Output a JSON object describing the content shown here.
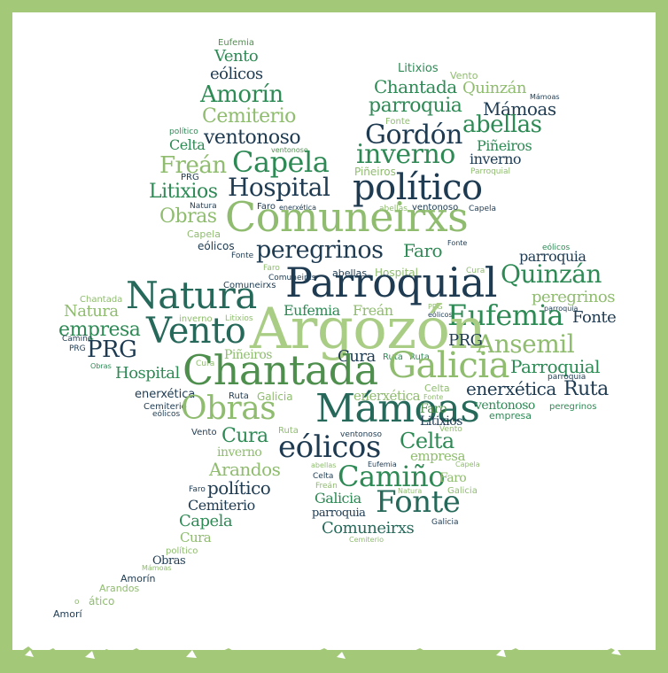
{
  "colors": {
    "frame": "#a2c878",
    "dark": "#1e3b52",
    "teal": "#26695a",
    "green": "#2e8a55",
    "mid": "#4f8f4e",
    "light": "#8fbc6f",
    "pale": "#a9cd85"
  },
  "words": [
    {
      "t": "Eufemia",
      "c": "mid"
    },
    {
      "t": "Vento",
      "c": "green"
    },
    {
      "t": "eólicos",
      "c": "dark"
    },
    {
      "t": "Amorín",
      "c": "green"
    },
    {
      "t": "Cemiterio",
      "c": "light"
    },
    {
      "t": "político",
      "c": "green"
    },
    {
      "t": "Celta",
      "c": "green"
    },
    {
      "t": "ventonoso",
      "c": "dark"
    },
    {
      "t": "ventonoso",
      "c": "mid"
    },
    {
      "t": "Freán",
      "c": "light"
    },
    {
      "t": "Capela",
      "c": "green"
    },
    {
      "t": "PRG",
      "c": "dark"
    },
    {
      "t": "Litixios",
      "c": "green"
    },
    {
      "t": "Hospital",
      "c": "dark"
    },
    {
      "t": "Obras",
      "c": "light"
    },
    {
      "t": "Natura",
      "c": "dark"
    },
    {
      "t": "Faro",
      "c": "dark"
    },
    {
      "t": "enerxética",
      "c": "dark"
    },
    {
      "t": "Comuneirxs",
      "c": "light"
    },
    {
      "t": "Capela",
      "c": "light"
    },
    {
      "t": "eólicos",
      "c": "dark"
    },
    {
      "t": "Fonte",
      "c": "dark"
    },
    {
      "t": "Litixios",
      "c": "green"
    },
    {
      "t": "Vento",
      "c": "light"
    },
    {
      "t": "Chantada",
      "c": "green"
    },
    {
      "t": "Quinzán",
      "c": "light"
    },
    {
      "t": "parroquia",
      "c": "green"
    },
    {
      "t": "Mámoas",
      "c": "dark"
    },
    {
      "t": "Fonte",
      "c": "light"
    },
    {
      "t": "abellas",
      "c": "green"
    },
    {
      "t": "Gordón",
      "c": "dark"
    },
    {
      "t": "Piñeiros",
      "c": "green"
    },
    {
      "t": "inverno",
      "c": "green"
    },
    {
      "t": "inverno",
      "c": "dark"
    },
    {
      "t": "Piñeiros",
      "c": "light"
    },
    {
      "t": "Parroquial",
      "c": "light"
    },
    {
      "t": "político",
      "c": "dark"
    },
    {
      "t": "abellas",
      "c": "light"
    },
    {
      "t": "ventonoso",
      "c": "dark"
    },
    {
      "t": "Capela",
      "c": "dark"
    },
    {
      "t": "Fonte",
      "c": "dark"
    },
    {
      "t": "peregrinos",
      "c": "dark"
    },
    {
      "t": "Faro",
      "c": "green"
    },
    {
      "t": "eólicos",
      "c": "green"
    },
    {
      "t": "parroquia",
      "c": "dark"
    },
    {
      "t": "Faro",
      "c": "light"
    },
    {
      "t": "Comuneirxs",
      "c": "dark"
    },
    {
      "t": "abellas",
      "c": "dark"
    },
    {
      "t": "Hospital",
      "c": "light"
    },
    {
      "t": "Cura",
      "c": "light"
    },
    {
      "t": "Quinzán",
      "c": "green"
    },
    {
      "t": "Natura",
      "c": "teal"
    },
    {
      "t": "Parroquial",
      "c": "dark"
    },
    {
      "t": "Chantada",
      "c": "light"
    },
    {
      "t": "peregrinos",
      "c": "light"
    },
    {
      "t": "Natura",
      "c": "light"
    },
    {
      "t": "PRG",
      "c": "light"
    },
    {
      "t": "Eufemia",
      "c": "green"
    },
    {
      "t": "Freán",
      "c": "light"
    },
    {
      "t": "empresa",
      "c": "light"
    },
    {
      "t": "inverno",
      "c": "light"
    },
    {
      "t": "Litixios",
      "c": "light"
    },
    {
      "t": "Galicia",
      "c": "green"
    },
    {
      "t": "eólicos",
      "c": "dark"
    },
    {
      "t": "Eufemia",
      "c": "green"
    },
    {
      "t": "Fonte",
      "c": "dark"
    },
    {
      "t": "empresa",
      "c": "green"
    },
    {
      "t": "Argozón",
      "c": "pale"
    },
    {
      "t": "Camiño",
      "c": "dark"
    },
    {
      "t": "Vento",
      "c": "teal"
    },
    {
      "t": "PRG",
      "c": "dark"
    },
    {
      "t": "Ansemil",
      "c": "light"
    },
    {
      "t": "PRG",
      "c": "dark"
    },
    {
      "t": "Piñeiros",
      "c": "light"
    },
    {
      "t": "peregrinos",
      "c": "dark"
    },
    {
      "t": "Cura",
      "c": "dark"
    },
    {
      "t": "Ruta",
      "c": "green"
    },
    {
      "t": "Obras",
      "c": "green"
    },
    {
      "t": "Cura",
      "c": "light"
    },
    {
      "t": "Hospital",
      "c": "green"
    },
    {
      "t": "Chantada",
      "c": "mid"
    },
    {
      "t": "Galicia",
      "c": "light"
    },
    {
      "t": "Parroquial",
      "c": "green"
    },
    {
      "t": "parroquia",
      "c": "dark"
    },
    {
      "t": "enerxética",
      "c": "light"
    },
    {
      "t": "Celta",
      "c": "light"
    },
    {
      "t": "enerxética",
      "c": "dark"
    },
    {
      "t": "Ruta",
      "c": "dark"
    },
    {
      "t": "Galicia",
      "c": "light"
    },
    {
      "t": "Fonte",
      "c": "light"
    },
    {
      "t": "Cemiterio",
      "c": "dark"
    },
    {
      "t": "eólicos",
      "c": "dark"
    },
    {
      "t": "Obras",
      "c": "light"
    },
    {
      "t": "Mámoas",
      "c": "teal"
    },
    {
      "t": "Faro",
      "c": "mid"
    },
    {
      "t": "Ruta",
      "c": "dark"
    },
    {
      "t": "ventonoso",
      "c": "green"
    },
    {
      "t": "peregrinos",
      "c": "green"
    },
    {
      "t": "Litixios",
      "c": "dark"
    },
    {
      "t": "empresa",
      "c": "green"
    },
    {
      "t": "Vento",
      "c": "dark"
    },
    {
      "t": "Ruta",
      "c": "light"
    },
    {
      "t": "ventonoso",
      "c": "dark"
    },
    {
      "t": "Vento",
      "c": "light"
    },
    {
      "t": "Cura",
      "c": "green"
    },
    {
      "t": "eólicos",
      "c": "dark"
    },
    {
      "t": "Celta",
      "c": "green"
    },
    {
      "t": "inverno",
      "c": "light"
    },
    {
      "t": "empresa",
      "c": "light"
    },
    {
      "t": "Arandos",
      "c": "light"
    },
    {
      "t": "abellas",
      "c": "light"
    },
    {
      "t": "Eufemia",
      "c": "dark"
    },
    {
      "t": "Capela",
      "c": "light"
    },
    {
      "t": "Celta",
      "c": "dark"
    },
    {
      "t": "Camiño",
      "c": "green"
    },
    {
      "t": "Faro",
      "c": "light"
    },
    {
      "t": "Freán",
      "c": "light"
    },
    {
      "t": "Natura",
      "c": "light"
    },
    {
      "t": "Galicia",
      "c": "light"
    },
    {
      "t": "Faro",
      "c": "dark"
    },
    {
      "t": "político",
      "c": "dark"
    },
    {
      "t": "Galicia",
      "c": "green"
    },
    {
      "t": "Fonte",
      "c": "teal"
    },
    {
      "t": "parroquia",
      "c": "dark"
    },
    {
      "t": "Cemiterio",
      "c": "dark"
    },
    {
      "t": "Galicia",
      "c": "dark"
    },
    {
      "t": "Capela",
      "c": "green"
    },
    {
      "t": "Comuneirxs",
      "c": "teal"
    },
    {
      "t": "Cura",
      "c": "light"
    },
    {
      "t": "Cemiterio",
      "c": "light"
    },
    {
      "t": "político",
      "c": "light"
    },
    {
      "t": "Obras",
      "c": "dark"
    },
    {
      "t": "Mámoas",
      "c": "light"
    },
    {
      "t": "Amorín",
      "c": "dark"
    },
    {
      "t": "Arandos",
      "c": "light"
    },
    {
      "t": "ático",
      "c": "light"
    },
    {
      "t": "Amorí",
      "c": "dark"
    }
  ]
}
